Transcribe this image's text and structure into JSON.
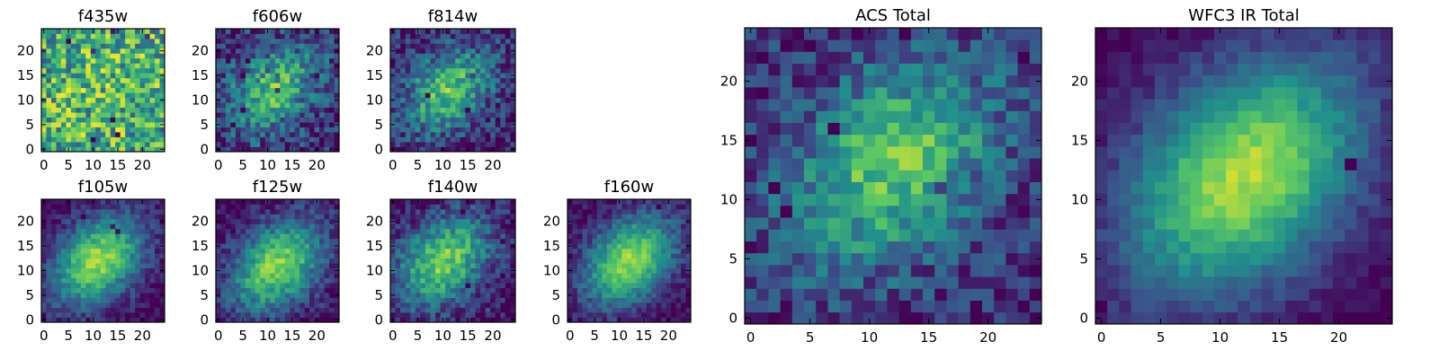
{
  "figure": {
    "colormap": "viridis",
    "heatmap_palette": [
      "#440154",
      "#3b528b",
      "#21918c",
      "#5ec962",
      "#fde725"
    ]
  },
  "chart_data": [
    {
      "type": "heatmap",
      "title": "f435w",
      "grid_size": [
        25,
        25
      ],
      "xlim": [
        0,
        24
      ],
      "ylim": [
        0,
        24
      ],
      "x_ticks": [
        0,
        5,
        10,
        15,
        20
      ],
      "y_ticks": [
        0,
        5,
        10,
        15,
        20
      ],
      "peak": [
        12,
        12
      ],
      "spread": 14,
      "structure": 0.15,
      "noise": 0.75,
      "seed": 11,
      "mean_level": 0.62
    },
    {
      "type": "heatmap",
      "title": "f606w",
      "grid_size": [
        25,
        25
      ],
      "xlim": [
        0,
        24
      ],
      "ylim": [
        0,
        24
      ],
      "x_ticks": [
        0,
        5,
        10,
        15,
        20
      ],
      "y_ticks": [
        0,
        5,
        10,
        15,
        20
      ],
      "peak": [
        11,
        12
      ],
      "spread": 6,
      "structure": 0.55,
      "noise": 0.5,
      "seed": 23,
      "mean_level": 0.35
    },
    {
      "type": "heatmap",
      "title": "f814w",
      "grid_size": [
        25,
        25
      ],
      "xlim": [
        0,
        24
      ],
      "ylim": [
        0,
        24
      ],
      "x_ticks": [
        0,
        5,
        10,
        15,
        20
      ],
      "y_ticks": [
        0,
        5,
        10,
        15,
        20
      ],
      "peak": [
        11,
        12
      ],
      "spread": 6,
      "structure": 0.6,
      "noise": 0.45,
      "seed": 37,
      "mean_level": 0.3
    },
    {
      "type": "heatmap",
      "title": "f105w",
      "grid_size": [
        25,
        25
      ],
      "xlim": [
        0,
        24
      ],
      "ylim": [
        0,
        24
      ],
      "x_ticks": [
        0,
        5,
        10,
        15,
        20
      ],
      "y_ticks": [
        0,
        5,
        10,
        15,
        20
      ],
      "peak": [
        11,
        12
      ],
      "spread": 6.5,
      "structure": 0.8,
      "noise": 0.25,
      "seed": 41,
      "mean_level": 0.2
    },
    {
      "type": "heatmap",
      "title": "f125w",
      "grid_size": [
        25,
        25
      ],
      "xlim": [
        0,
        24
      ],
      "ylim": [
        0,
        24
      ],
      "x_ticks": [
        0,
        5,
        10,
        15,
        20
      ],
      "y_ticks": [
        0,
        5,
        10,
        15,
        20
      ],
      "peak": [
        12,
        11
      ],
      "spread": 6.5,
      "structure": 0.75,
      "noise": 0.3,
      "seed": 53,
      "mean_level": 0.25
    },
    {
      "type": "heatmap",
      "title": "f140w",
      "grid_size": [
        25,
        25
      ],
      "xlim": [
        0,
        24
      ],
      "ylim": [
        0,
        24
      ],
      "x_ticks": [
        0,
        5,
        10,
        15,
        20
      ],
      "y_ticks": [
        0,
        5,
        10,
        15,
        20
      ],
      "peak": [
        10,
        12
      ],
      "spread": 6.5,
      "structure": 0.7,
      "noise": 0.35,
      "seed": 67,
      "mean_level": 0.25
    },
    {
      "type": "heatmap",
      "title": "f160w",
      "grid_size": [
        25,
        25
      ],
      "xlim": [
        0,
        24
      ],
      "ylim": [
        0,
        24
      ],
      "x_ticks": [
        0,
        5,
        10,
        15,
        20
      ],
      "y_ticks": [
        0,
        5,
        10,
        15,
        20
      ],
      "peak": [
        12,
        12
      ],
      "spread": 6.5,
      "structure": 0.8,
      "noise": 0.25,
      "seed": 79,
      "mean_level": 0.2
    },
    {
      "type": "heatmap",
      "title": "ACS Total",
      "grid_size": [
        25,
        25
      ],
      "xlim": [
        0,
        24
      ],
      "ylim": [
        0,
        24
      ],
      "x_ticks": [
        0,
        5,
        10,
        15,
        20
      ],
      "y_ticks": [
        0,
        5,
        10,
        15,
        20
      ],
      "peak": [
        12,
        13
      ],
      "spread": 6,
      "structure": 0.6,
      "noise": 0.4,
      "seed": 97,
      "mean_level": 0.35
    },
    {
      "type": "heatmap",
      "title": "WFC3 IR Total",
      "grid_size": [
        25,
        25
      ],
      "xlim": [
        0,
        24
      ],
      "ylim": [
        0,
        24
      ],
      "x_ticks": [
        0,
        5,
        10,
        15,
        20
      ],
      "y_ticks": [
        0,
        5,
        10,
        15,
        20
      ],
      "peak": [
        12,
        12
      ],
      "spread": 7,
      "structure": 0.85,
      "noise": 0.15,
      "seed": 101,
      "mean_level": 0.2
    }
  ]
}
